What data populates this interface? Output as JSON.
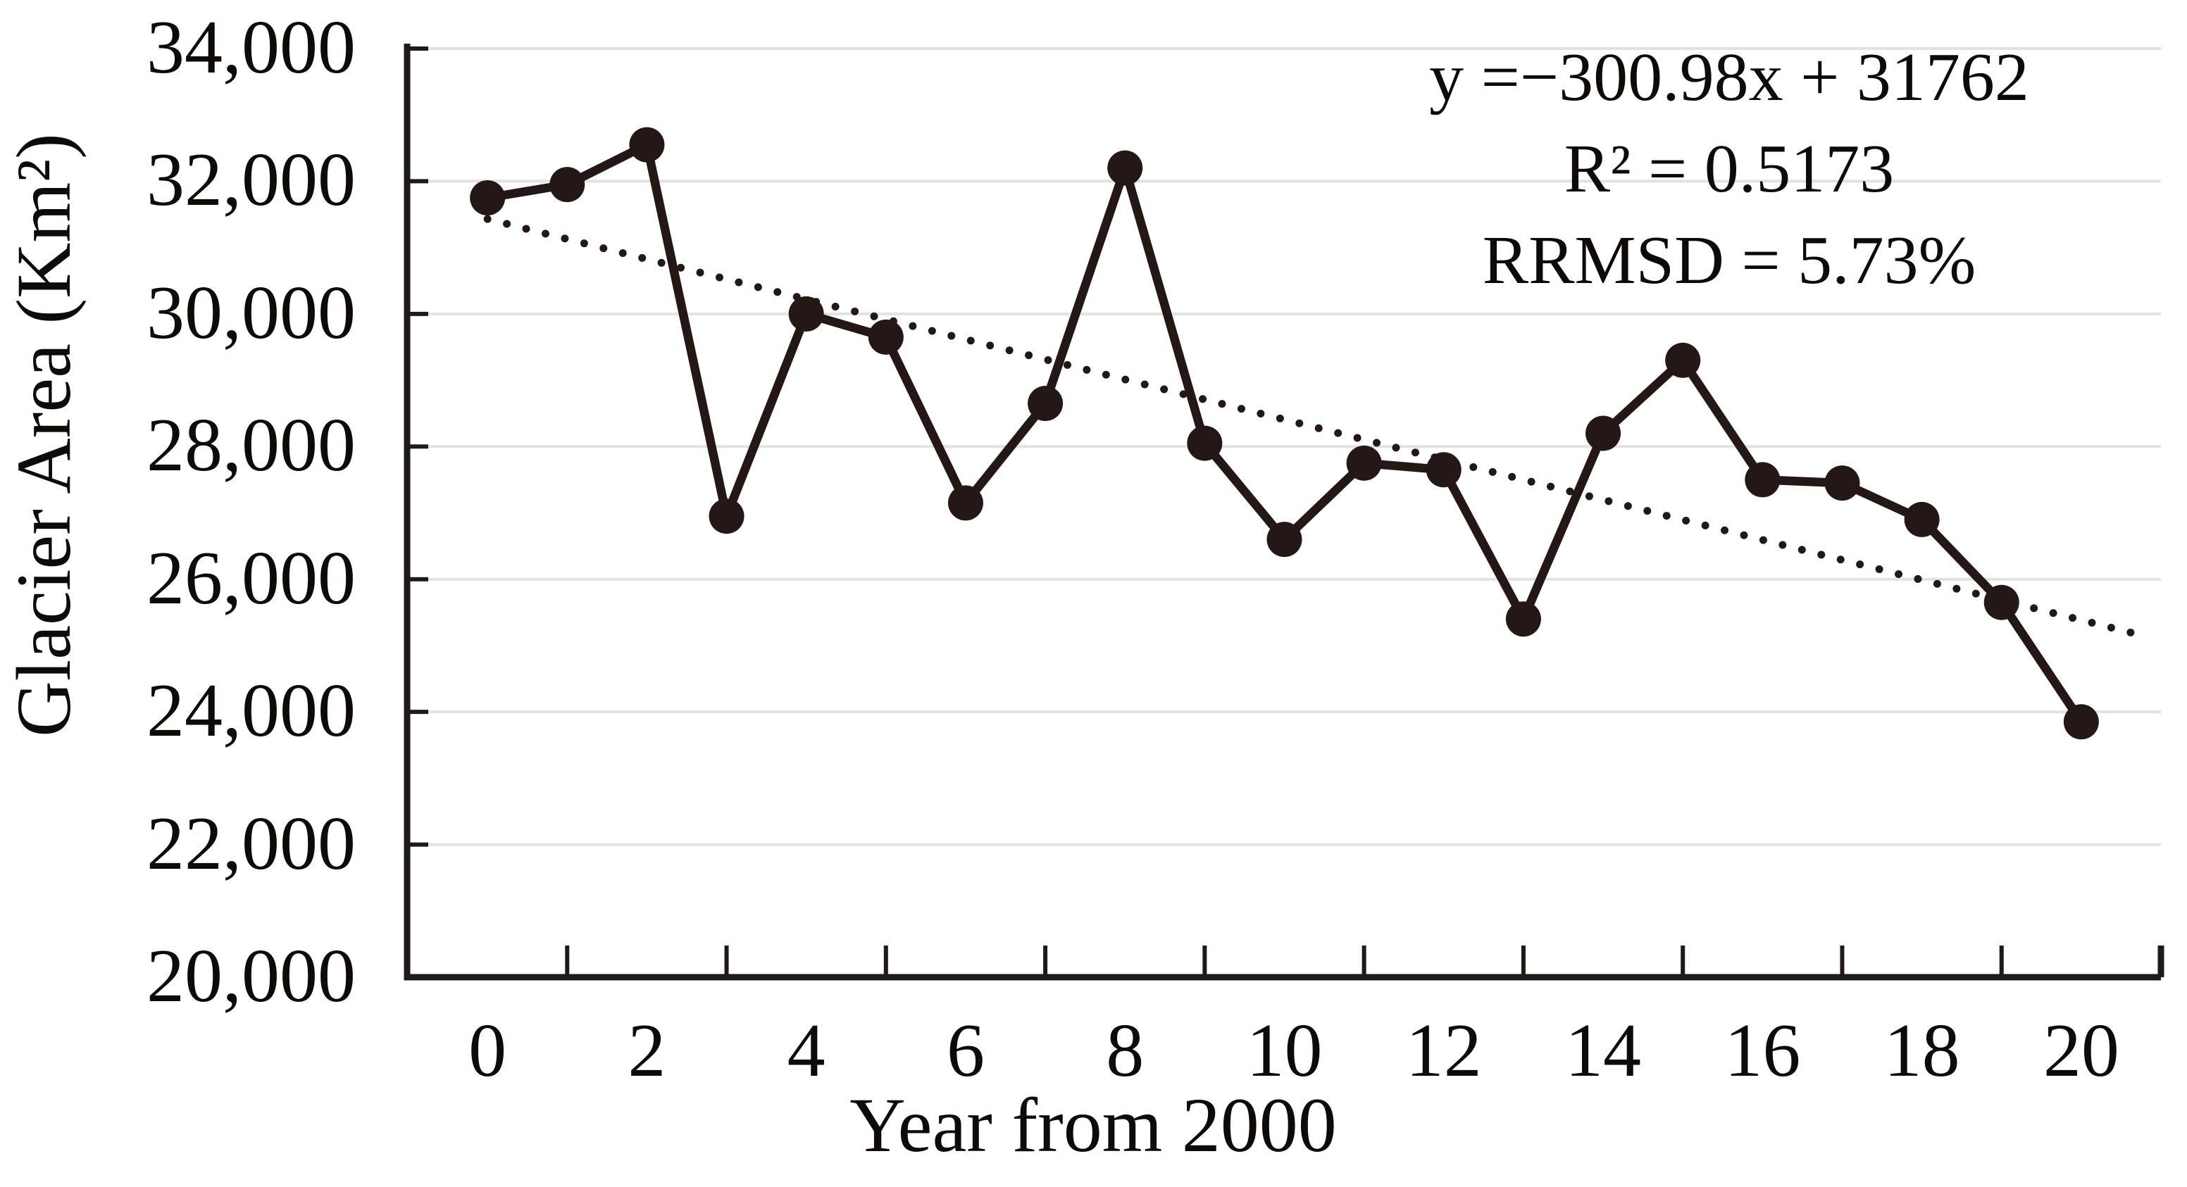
{
  "y_axis": {
    "title": "Glacier Area (Km²)",
    "tick_labels": [
      "34,000",
      "32,000",
      "30,000",
      "28,000",
      "26,000",
      "24,000",
      "22,000",
      "20,000"
    ],
    "tick_values": [
      34000,
      32000,
      30000,
      28000,
      26000,
      24000,
      22000,
      20000
    ],
    "range": [
      20000,
      34000
    ]
  },
  "x_axis": {
    "title": "Year from 2000",
    "tick_labels": [
      "0",
      "2",
      "4",
      "6",
      "8",
      "10",
      "12",
      "14",
      "16",
      "18",
      "20"
    ],
    "tick_values": [
      0,
      2,
      4,
      6,
      8,
      10,
      12,
      14,
      16,
      18,
      20
    ],
    "range": [
      -1,
      21
    ]
  },
  "annotation": {
    "line1": "y =−300.98x + 31762",
    "line2": "R² = 0.5173",
    "line3": "RRMSD = 5.73%"
  },
  "chart_data": {
    "type": "line",
    "title": "",
    "xlabel": "Year from 2000",
    "ylabel": "Glacier Area (Km²)",
    "x": [
      0,
      1,
      2,
      3,
      4,
      5,
      6,
      7,
      8,
      9,
      10,
      11,
      12,
      13,
      14,
      15,
      16,
      17,
      18,
      19,
      20
    ],
    "series": [
      {
        "name": "Glacier Area (Km²)",
        "values": [
          31750,
          31950,
          32550,
          26950,
          30000,
          29650,
          27150,
          28650,
          32200,
          28050,
          26600,
          27750,
          27650,
          25400,
          28200,
          29300,
          27500,
          27450,
          26900,
          25650,
          23850
        ]
      }
    ],
    "trendline": {
      "equation": "y = −300.98x + 31762",
      "slope": -300.98,
      "intercept": 31762,
      "r_squared": 0.5173,
      "rrmsd_percent": 5.73,
      "style": "dotted",
      "drawn_from": {
        "x": 0,
        "y": 31430
      },
      "drawn_to": {
        "x": 20.85,
        "y": 25127
      }
    },
    "xlim": [
      -1,
      21
    ],
    "ylim": [
      20000,
      34000
    ],
    "grid": "horizontal-only",
    "legend": "none",
    "colors": {
      "series": "#231815",
      "trendline": "#231815",
      "gridline": "#e2e2e2",
      "axis": "#1f1a17",
      "text": "#0d0a08",
      "background": "#ffffff"
    }
  }
}
